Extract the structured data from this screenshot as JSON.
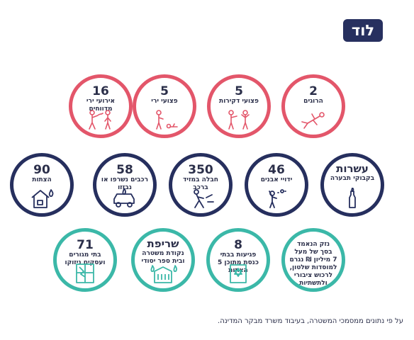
{
  "header": {
    "city": "לוד"
  },
  "row1": [
    {
      "id": "killed",
      "number": "2",
      "label": "הרוגים",
      "icon": "fallen-person-icon"
    },
    {
      "id": "stabbed",
      "number": "5",
      "label": "פצועי דקירות",
      "icon": "stabbing-icon"
    },
    {
      "id": "shot",
      "number": "5",
      "label": "פצועי ירי",
      "icon": "shooting-victim-icon"
    },
    {
      "id": "shooting-events",
      "number": "16",
      "label": "אירועי ירי מדווחים",
      "icon": "gunfire-icon"
    }
  ],
  "row2": [
    {
      "id": "molotov",
      "text": "עשרות",
      "label": "בקבוקי תבערה",
      "icon": "molotov-bottle-icon"
    },
    {
      "id": "stones",
      "number": "46",
      "label": "ידויי אבנים",
      "icon": "stone-throwing-icon"
    },
    {
      "id": "vehicle-damage",
      "number": "350",
      "label": "חבלה במזיד ברכב",
      "icon": "vandalism-icon"
    },
    {
      "id": "vehicles-burned",
      "number": "58",
      "label": "רכבים נשרפו או נבזזו",
      "icon": "burning-car-icon"
    },
    {
      "id": "arson",
      "number": "90",
      "label": "הצתות",
      "icon": "burning-house-icon"
    }
  ],
  "row3": [
    {
      "id": "damage",
      "lines": [
        "נזק הנאמד",
        "בסך של מעל",
        "7 מיליון ₪ נגרם",
        "למוסדות שלטון,",
        "לרכוש ציבורי",
        "ולתשתיות"
      ]
    },
    {
      "id": "synagogues",
      "number": "8",
      "label": "פגיעות בבתי כנסת מתוכן 5 הצתות",
      "icon": "synagogue-icon"
    },
    {
      "id": "police-school",
      "text": "שריפת",
      "label": "נקודת משטרה ובית ספר יסודי",
      "icon": "burning-building-icon"
    },
    {
      "id": "homes-businesses",
      "number": "71",
      "label": "בתי מגורים ועסקים ניזוקו",
      "icon": "broken-window-icon"
    }
  ],
  "footer": {
    "note": "על פי נתונים ממסמכי המשטרה, בעיבוד משרד מבקר המדינה."
  }
}
